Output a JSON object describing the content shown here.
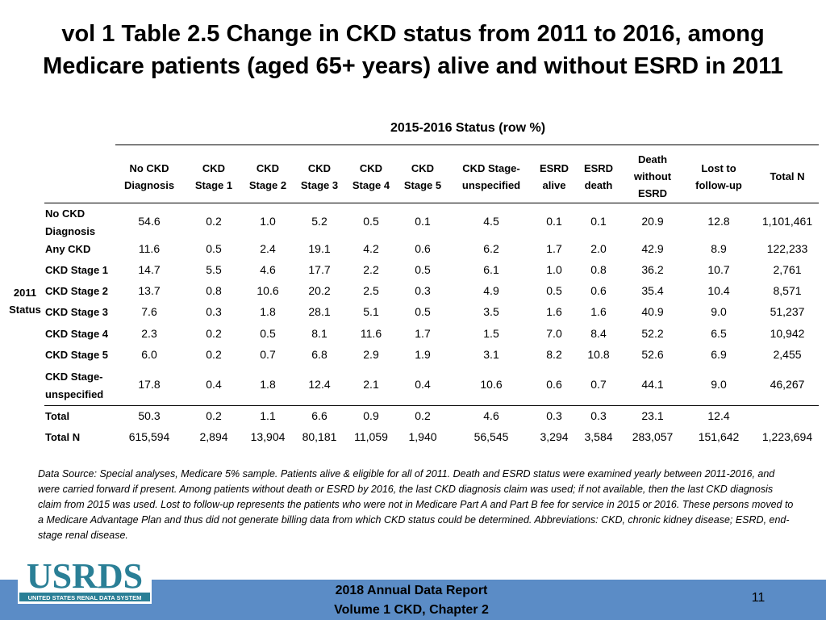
{
  "title_line1": "vol 1 Table 2.5 Change in CKD status from 2011 to 2016, among",
  "title_line2": "Medicare patients (aged 65+ years) alive and without ESRD in 2011",
  "status_header": "2015-2016 Status (row %)",
  "side_label_1": "2011",
  "side_label_2": "Status",
  "columns": [
    {
      "l1": "No CKD",
      "l2": "Diagnosis",
      "l3": ""
    },
    {
      "l1": "CKD",
      "l2": "Stage 1",
      "l3": ""
    },
    {
      "l1": "CKD",
      "l2": "Stage 2",
      "l3": ""
    },
    {
      "l1": "CKD",
      "l2": "Stage 3",
      "l3": ""
    },
    {
      "l1": "CKD",
      "l2": "Stage 4",
      "l3": ""
    },
    {
      "l1": "CKD",
      "l2": "Stage 5",
      "l3": ""
    },
    {
      "l1": "CKD Stage-",
      "l2": "unspecified",
      "l3": ""
    },
    {
      "l1": "ESRD",
      "l2": "alive",
      "l3": ""
    },
    {
      "l1": "ESRD",
      "l2": "death",
      "l3": ""
    },
    {
      "l1": "Death",
      "l2": "without",
      "l3": "ESRD"
    },
    {
      "l1": "Lost to",
      "l2": "follow-up",
      "l3": ""
    },
    {
      "l1": "Total N",
      "l2": "",
      "l3": ""
    }
  ],
  "rows": [
    {
      "label1": "No CKD",
      "label2": "Diagnosis",
      "values": [
        "54.6",
        "0.2",
        "1.0",
        "5.2",
        "0.5",
        "0.1",
        "4.5",
        "0.1",
        "0.1",
        "20.9",
        "12.8",
        "1,101,461"
      ]
    },
    {
      "label1": "Any CKD",
      "label2": "",
      "values": [
        "11.6",
        "0.5",
        "2.4",
        "19.1",
        "4.2",
        "0.6",
        "6.2",
        "1.7",
        "2.0",
        "42.9",
        "8.9",
        "122,233"
      ]
    },
    {
      "label1": "CKD Stage 1",
      "label2": "",
      "values": [
        "14.7",
        "5.5",
        "4.6",
        "17.7",
        "2.2",
        "0.5",
        "6.1",
        "1.0",
        "0.8",
        "36.2",
        "10.7",
        "2,761"
      ]
    },
    {
      "label1": "CKD Stage 2",
      "label2": "",
      "values": [
        "13.7",
        "0.8",
        "10.6",
        "20.2",
        "2.5",
        "0.3",
        "4.9",
        "0.5",
        "0.6",
        "35.4",
        "10.4",
        "8,571"
      ]
    },
    {
      "label1": "CKD Stage 3",
      "label2": "",
      "values": [
        "7.6",
        "0.3",
        "1.8",
        "28.1",
        "5.1",
        "0.5",
        "3.5",
        "1.6",
        "1.6",
        "40.9",
        "9.0",
        "51,237"
      ]
    },
    {
      "label1": "CKD Stage 4",
      "label2": "",
      "values": [
        "2.3",
        "0.2",
        "0.5",
        "8.1",
        "11.6",
        "1.7",
        "1.5",
        "7.0",
        "8.4",
        "52.2",
        "6.5",
        "10,942"
      ]
    },
    {
      "label1": "CKD Stage 5",
      "label2": "",
      "values": [
        "6.0",
        "0.2",
        "0.7",
        "6.8",
        "2.9",
        "1.9",
        "3.1",
        "8.2",
        "10.8",
        "52.6",
        "6.9",
        "2,455"
      ]
    },
    {
      "label1": "CKD Stage-",
      "label2": "unspecified",
      "values": [
        "17.8",
        "0.4",
        "1.8",
        "12.4",
        "2.1",
        "0.4",
        "10.6",
        "0.6",
        "0.7",
        "44.1",
        "9.0",
        "46,267"
      ]
    },
    {
      "label1": "Total",
      "label2": "",
      "values": [
        "50.3",
        "0.2",
        "1.1",
        "6.6",
        "0.9",
        "0.2",
        "4.6",
        "0.3",
        "0.3",
        "23.1",
        "12.4",
        ""
      ]
    },
    {
      "label1": "Total N",
      "label2": "",
      "values": [
        "615,594",
        "2,894",
        "13,904",
        "80,181",
        "11,059",
        "1,940",
        "56,545",
        "3,294",
        "3,584",
        "283,057",
        "151,642",
        "1,223,694"
      ]
    }
  ],
  "footnote": "Data Source: Special analyses, Medicare 5% sample. Patients alive & eligible for all of 2011. Death and ESRD status were examined yearly between 2011-2016, and were carried forward if present. Among patients without death or ESRD by 2016, the last CKD diagnosis claim was used; if not available, then the last CKD diagnosis claim from 2015 was used. Lost to follow-up represents the patients who were not in Medicare Part A and Part B fee for service in 2015 or 2016. These persons moved to a Medicare Advantage Plan and thus did not generate billing data from which CKD status could be determined.  Abbreviations: CKD, chronic kidney disease; ESRD, end-stage renal disease.",
  "logo_text": "USRDS",
  "logo_subtext": "UNITED STATES RENAL DATA SYSTEM",
  "report_line1": "2018 Annual Data Report",
  "report_line2": "Volume 1 CKD, Chapter 2",
  "page_number": "11",
  "colors": {
    "bar": "#5b8cc6",
    "logo": "#2a7f96"
  }
}
